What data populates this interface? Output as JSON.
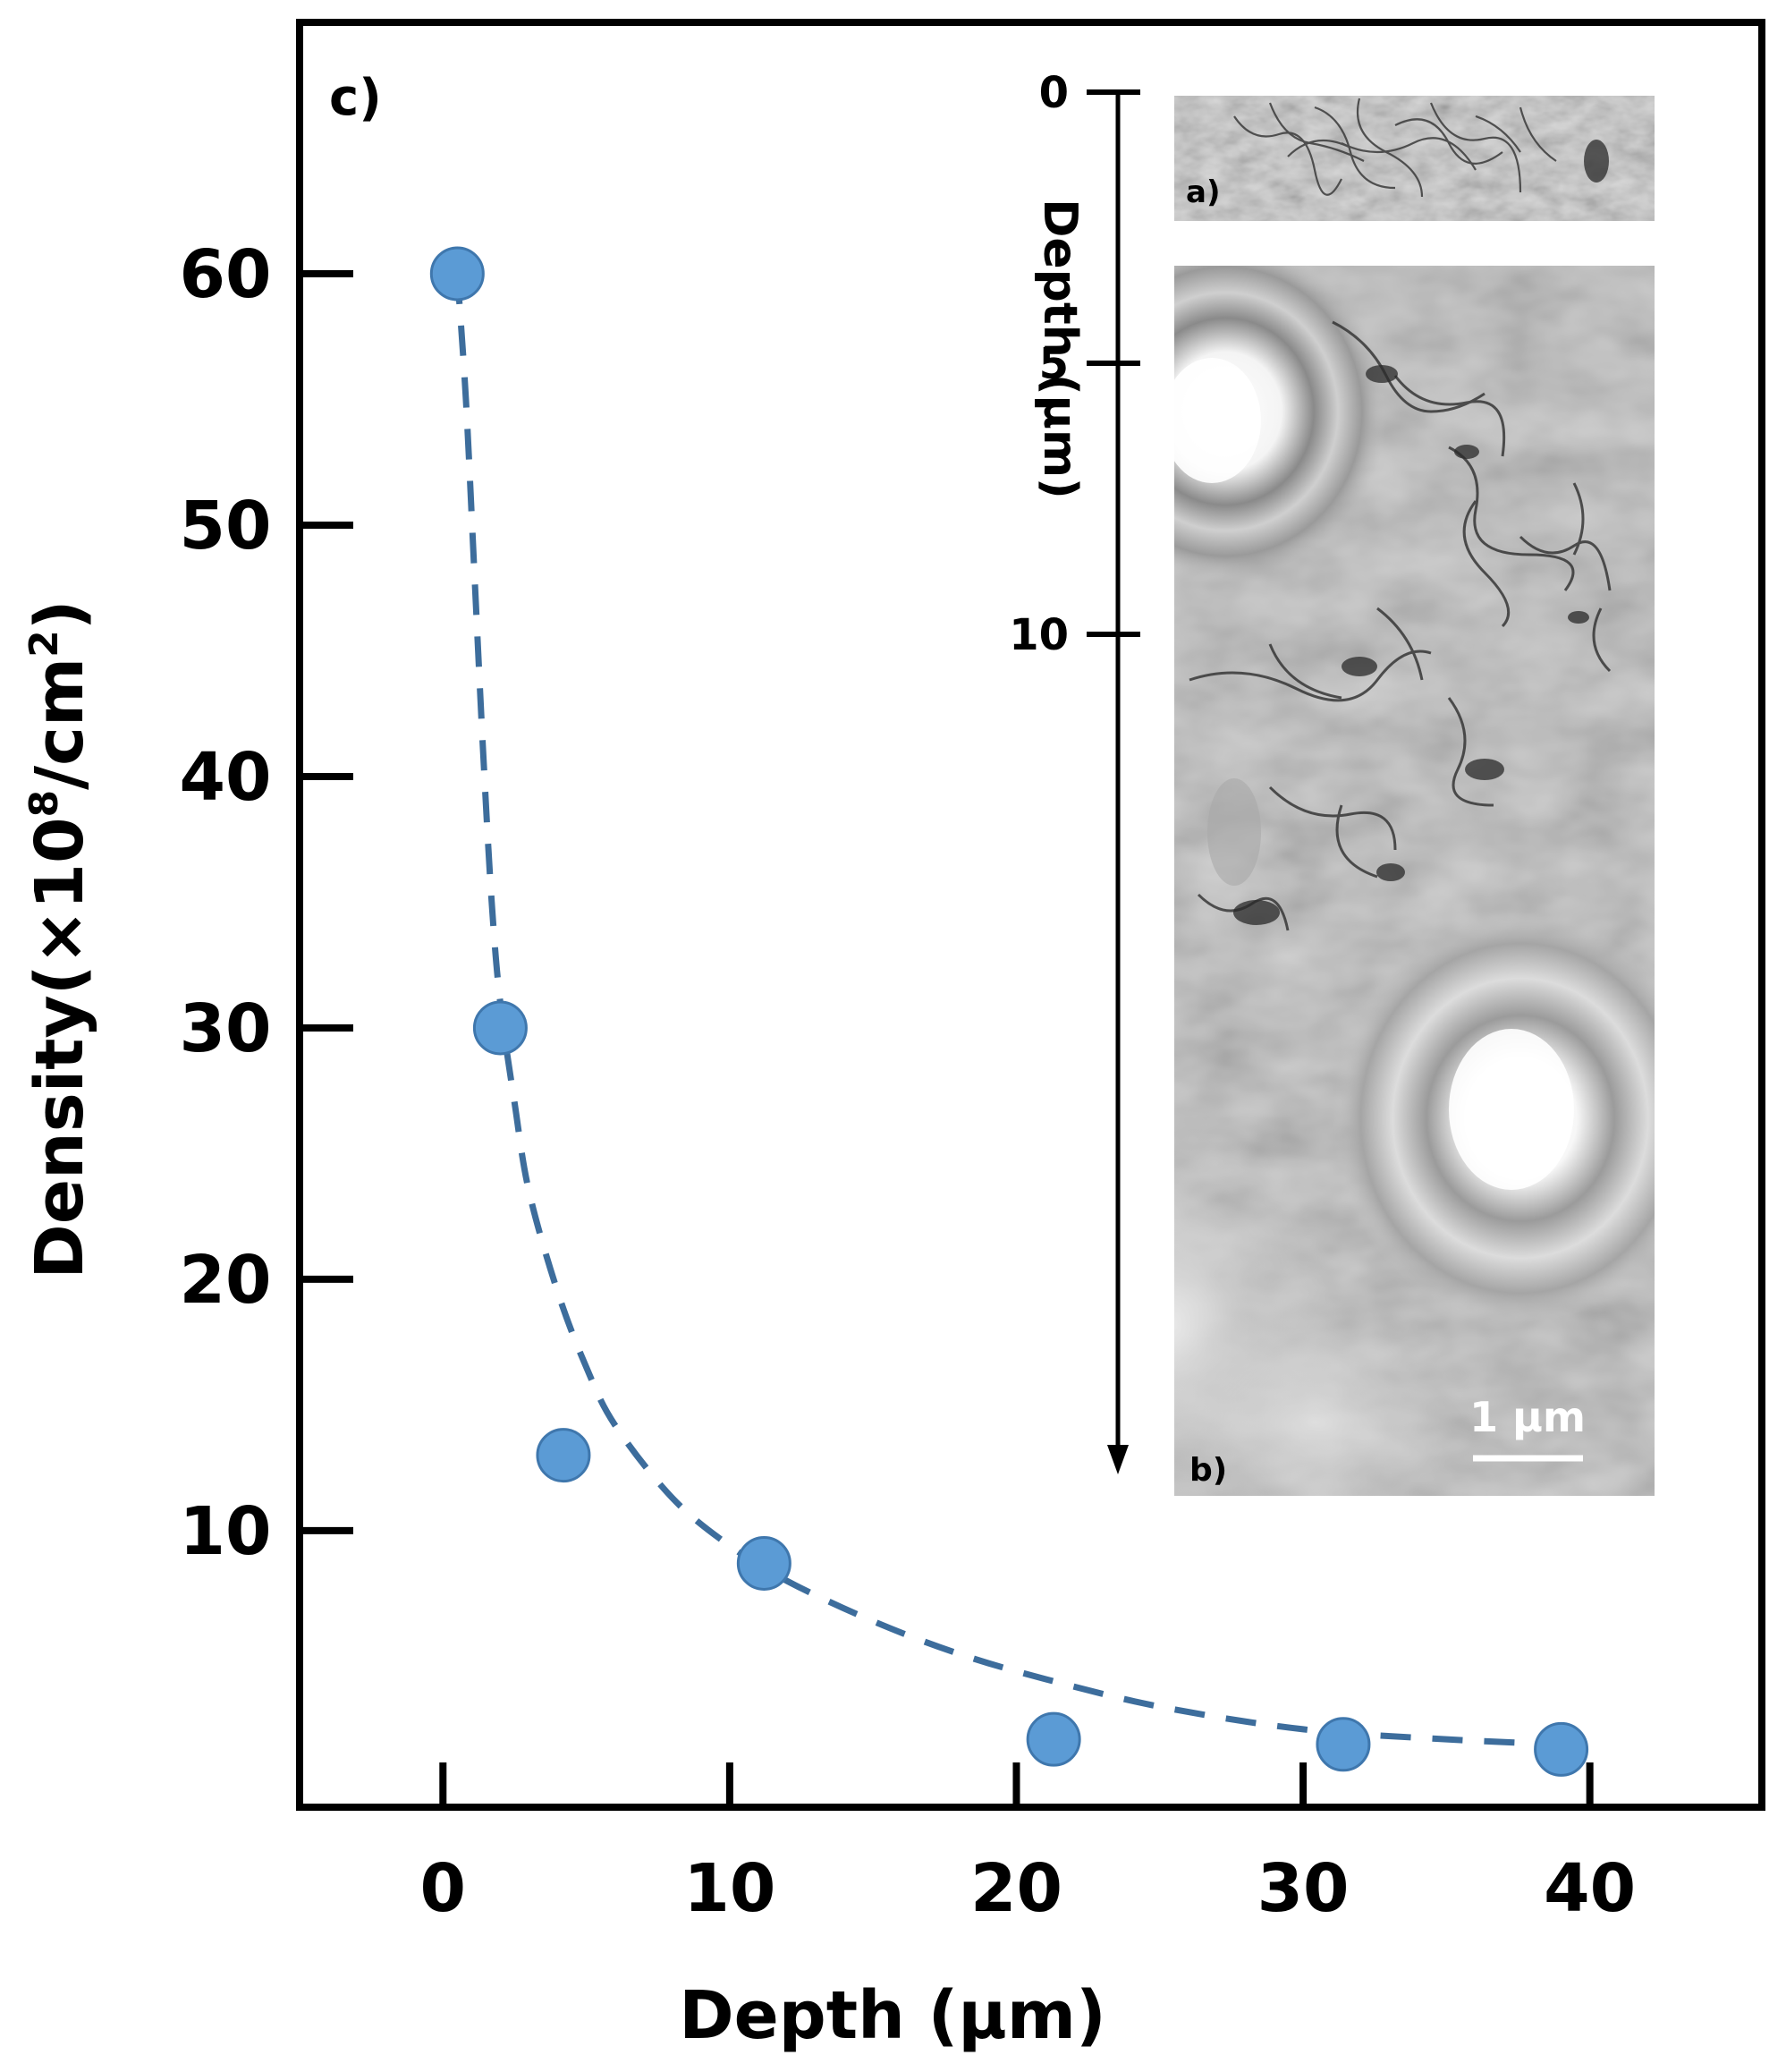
{
  "panel_label": "c)",
  "chart_data": {
    "type": "scatter",
    "xlabel": "Depth (μm)",
    "ylabel_main": "Density(×10",
    "ylabel_sup1": "8",
    "ylabel_mid": "/cm",
    "ylabel_sup2": "2",
    "ylabel_end": ")",
    "xlim": [
      -5,
      46
    ],
    "ylim": [
      -1,
      70
    ],
    "xticks": [
      0,
      10,
      20,
      30,
      40
    ],
    "xtick_labels": [
      "0",
      "10",
      "20",
      "30",
      "40"
    ],
    "yticks": [
      10,
      20,
      30,
      40,
      50,
      60
    ],
    "ytick_labels": [
      "10",
      "20",
      "30",
      "40",
      "50",
      "60"
    ],
    "grid": false,
    "series": [
      {
        "points": [
          {
            "x": 0.5,
            "y": 60
          },
          {
            "x": 2.0,
            "y": 30
          },
          {
            "x": 4.2,
            "y": 13
          },
          {
            "x": 11.2,
            "y": 8.7
          },
          {
            "x": 21.3,
            "y": 1.7
          },
          {
            "x": 31.4,
            "y": 1.5
          },
          {
            "x": 39.0,
            "y": 1.3
          }
        ],
        "color": "#5b9bd5",
        "edge_color": "#3f77ad"
      }
    ],
    "fit_curve": {
      "style": "dashed",
      "color": "#3d6d9c",
      "points": [
        {
          "x": 0.5,
          "y": 60
        },
        {
          "x": 0.8,
          "y": 55
        },
        {
          "x": 1.1,
          "y": 48
        },
        {
          "x": 1.4,
          "y": 41
        },
        {
          "x": 1.7,
          "y": 35
        },
        {
          "x": 2.0,
          "y": 31
        },
        {
          "x": 2.5,
          "y": 27
        },
        {
          "x": 3.0,
          "y": 23.5
        },
        {
          "x": 4.0,
          "y": 19.5
        },
        {
          "x": 5.0,
          "y": 16.5
        },
        {
          "x": 6.0,
          "y": 14.2
        },
        {
          "x": 8.0,
          "y": 11.3
        },
        {
          "x": 10.0,
          "y": 9.4
        },
        {
          "x": 12.0,
          "y": 8.0
        },
        {
          "x": 15.0,
          "y": 6.4
        },
        {
          "x": 18.0,
          "y": 5.1
        },
        {
          "x": 21.0,
          "y": 4.1
        },
        {
          "x": 25.0,
          "y": 3.0
        },
        {
          "x": 30.0,
          "y": 2.1
        },
        {
          "x": 35.0,
          "y": 1.7
        },
        {
          "x": 39.0,
          "y": 1.5
        }
      ]
    }
  },
  "inset": {
    "depth_label": "Depth (μm)",
    "depth_ticks": [
      0,
      5,
      10
    ],
    "depth_tick_labels": [
      "0",
      "5",
      "10"
    ],
    "depth_max": 12.8,
    "image_a_label": "a)",
    "image_b_label": "b)",
    "scale_bar_label": "1 μm"
  }
}
